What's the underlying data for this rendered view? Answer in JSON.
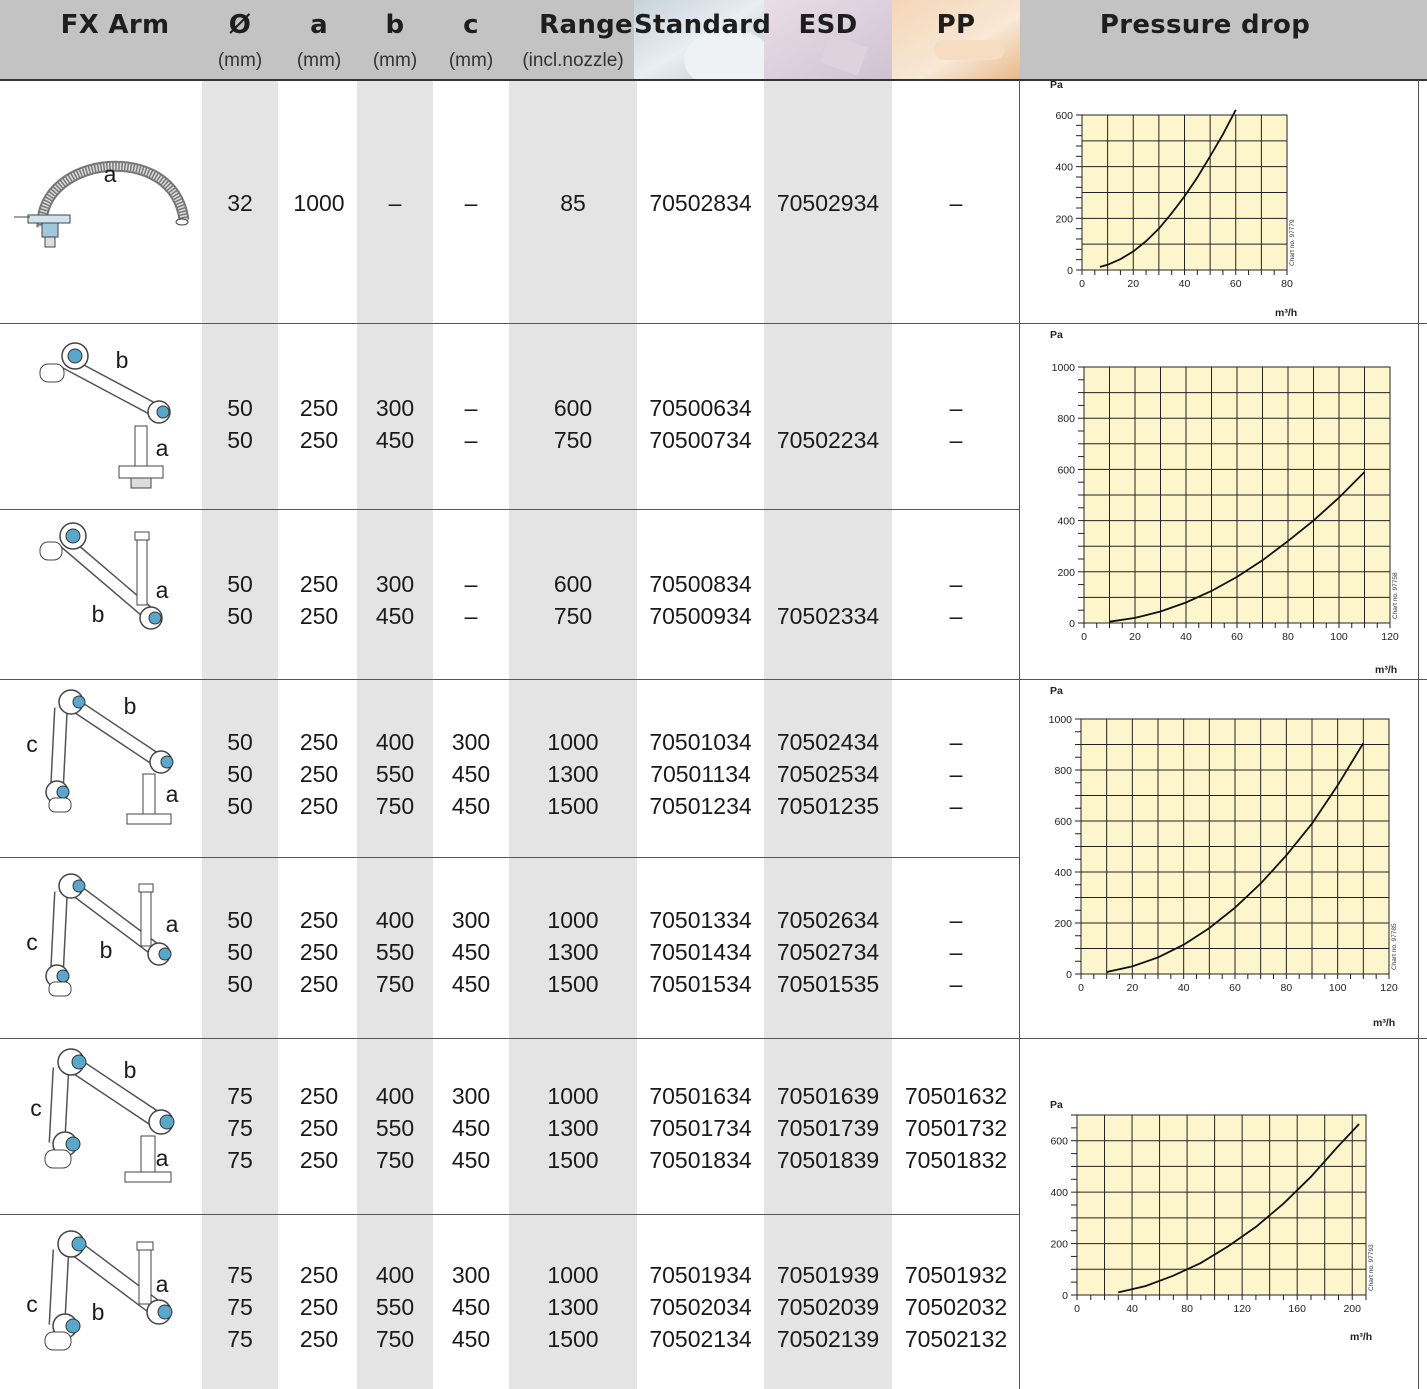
{
  "header": {
    "columns": [
      {
        "label": "FX Arm",
        "unit": ""
      },
      {
        "label": "Ø",
        "unit": "(mm)"
      },
      {
        "label": "a",
        "unit": "(mm)"
      },
      {
        "label": "b",
        "unit": "(mm)"
      },
      {
        "label": "c",
        "unit": "(mm)"
      },
      {
        "label": "Range",
        "unit": "(incl.nozzle)"
      },
      {
        "label": "Standard",
        "unit": ""
      },
      {
        "label": "ESD",
        "unit": ""
      },
      {
        "label": "PP",
        "unit": ""
      },
      {
        "label": "Pressure drop",
        "unit": ""
      }
    ]
  },
  "rows": [
    {
      "diam": [
        "32"
      ],
      "a": [
        "1000"
      ],
      "b": [
        "–"
      ],
      "c": [
        "–"
      ],
      "range": [
        "85"
      ],
      "standard": [
        "70502834"
      ],
      "esd": [
        "70502934"
      ],
      "pp": [
        "–"
      ],
      "labels": [
        "a"
      ]
    },
    {
      "diam": [
        "50",
        "50"
      ],
      "a": [
        "250",
        "250"
      ],
      "b": [
        "300",
        "450"
      ],
      "c": [
        "–",
        "–"
      ],
      "range": [
        "600",
        "750"
      ],
      "standard": [
        "70500634",
        "70500734"
      ],
      "esd": [
        "",
        "70502234"
      ],
      "pp": [
        "–",
        "–"
      ],
      "labels": [
        "b",
        "a"
      ]
    },
    {
      "diam": [
        "50",
        "50"
      ],
      "a": [
        "250",
        "250"
      ],
      "b": [
        "300",
        "450"
      ],
      "c": [
        "–",
        "–"
      ],
      "range": [
        "600",
        "750"
      ],
      "standard": [
        "70500834",
        "70500934"
      ],
      "esd": [
        "",
        "70502334"
      ],
      "pp": [
        "–",
        "–"
      ],
      "labels": [
        "a",
        "b"
      ]
    },
    {
      "diam": [
        "50",
        "50",
        "50"
      ],
      "a": [
        "250",
        "250",
        "250"
      ],
      "b": [
        "400",
        "550",
        "750"
      ],
      "c": [
        "300",
        "450",
        "450"
      ],
      "range": [
        "1000",
        "1300",
        "1500"
      ],
      "standard": [
        "70501034",
        "70501134",
        "70501234"
      ],
      "esd": [
        "70502434",
        "70502534",
        "70501235"
      ],
      "pp": [
        "–",
        "–",
        "–"
      ],
      "labels": [
        "b",
        "c",
        "a"
      ]
    },
    {
      "diam": [
        "50",
        "50",
        "50"
      ],
      "a": [
        "250",
        "250",
        "250"
      ],
      "b": [
        "400",
        "550",
        "750"
      ],
      "c": [
        "300",
        "450",
        "450"
      ],
      "range": [
        "1000",
        "1300",
        "1500"
      ],
      "standard": [
        "70501334",
        "70501434",
        "70501534"
      ],
      "esd": [
        "70502634",
        "70502734",
        "70501535"
      ],
      "pp": [
        "–",
        "–",
        "–"
      ],
      "labels": [
        "a",
        "c",
        "b"
      ]
    },
    {
      "diam": [
        "75",
        "75",
        "75"
      ],
      "a": [
        "250",
        "250",
        "250"
      ],
      "b": [
        "400",
        "550",
        "750"
      ],
      "c": [
        "300",
        "450",
        "450"
      ],
      "range": [
        "1000",
        "1300",
        "1500"
      ],
      "standard": [
        "70501634",
        "70501734",
        "70501834"
      ],
      "esd": [
        "70501639",
        "70501739",
        "70501839"
      ],
      "pp": [
        "70501632",
        "70501732",
        "70501832"
      ],
      "labels": [
        "b",
        "c",
        "a"
      ]
    },
    {
      "diam": [
        "75",
        "75",
        "75"
      ],
      "a": [
        "250",
        "250",
        "250"
      ],
      "b": [
        "400",
        "550",
        "750"
      ],
      "c": [
        "300",
        "450",
        "450"
      ],
      "range": [
        "1000",
        "1300",
        "1500"
      ],
      "standard": [
        "70501934",
        "70502034",
        "70502134"
      ],
      "esd": [
        "70501939",
        "70502039",
        "70502139"
      ],
      "pp": [
        "70501932",
        "70502032",
        "70502132"
      ],
      "labels": [
        "a",
        "c",
        "b"
      ]
    }
  ],
  "chart_data": [
    {
      "type": "line",
      "ylabel": "Pa",
      "xlabel": "m³/h",
      "chart_no": "Chart no. 97779",
      "xlim": [
        0,
        80
      ],
      "ylim": [
        0,
        600
      ],
      "xticks": [
        0,
        20,
        40,
        60,
        80
      ],
      "yticks": [
        0,
        200,
        400,
        600
      ],
      "series": [
        {
          "x": [
            7,
            10,
            15,
            20,
            25,
            30,
            35,
            40,
            45,
            50,
            55,
            60
          ],
          "y": [
            12,
            20,
            42,
            72,
            112,
            160,
            220,
            285,
            358,
            440,
            525,
            620
          ]
        }
      ]
    },
    {
      "type": "line",
      "ylabel": "Pa",
      "xlabel": "m³/h",
      "chart_no": "Chart no. 97758",
      "xlim": [
        0,
        120
      ],
      "ylim": [
        0,
        1000
      ],
      "xticks": [
        0,
        20,
        40,
        60,
        80,
        100,
        120
      ],
      "yticks": [
        0,
        200,
        400,
        600,
        800,
        1000
      ],
      "series": [
        {
          "x": [
            10,
            20,
            30,
            40,
            50,
            60,
            70,
            80,
            90,
            100,
            110
          ],
          "y": [
            5,
            20,
            45,
            80,
            125,
            180,
            245,
            320,
            400,
            490,
            590
          ]
        }
      ]
    },
    {
      "type": "line",
      "ylabel": "Pa",
      "xlabel": "m³/h",
      "chart_no": "Chart no. 97785",
      "xlim": [
        0,
        120
      ],
      "ylim": [
        0,
        1000
      ],
      "xticks": [
        0,
        20,
        40,
        60,
        80,
        100,
        120
      ],
      "yticks": [
        0,
        200,
        400,
        600,
        800,
        1000
      ],
      "series": [
        {
          "x": [
            10,
            20,
            30,
            40,
            50,
            60,
            70,
            80,
            90,
            100,
            110
          ],
          "y": [
            8,
            30,
            65,
            115,
            180,
            260,
            355,
            465,
            590,
            740,
            905
          ]
        }
      ]
    },
    {
      "type": "line",
      "ylabel": "Pa",
      "xlabel": "m³/h",
      "chart_no": "Chart no. 97793",
      "xlim": [
        0,
        210
      ],
      "ylim": [
        0,
        700
      ],
      "xticks": [
        0,
        40,
        80,
        120,
        160,
        200
      ],
      "yticks": [
        0,
        200,
        400,
        600
      ],
      "series": [
        {
          "x": [
            30,
            50,
            70,
            90,
            110,
            130,
            150,
            170,
            190,
            205
          ],
          "y": [
            10,
            35,
            75,
            125,
            190,
            265,
            355,
            460,
            580,
            665
          ]
        }
      ]
    }
  ]
}
